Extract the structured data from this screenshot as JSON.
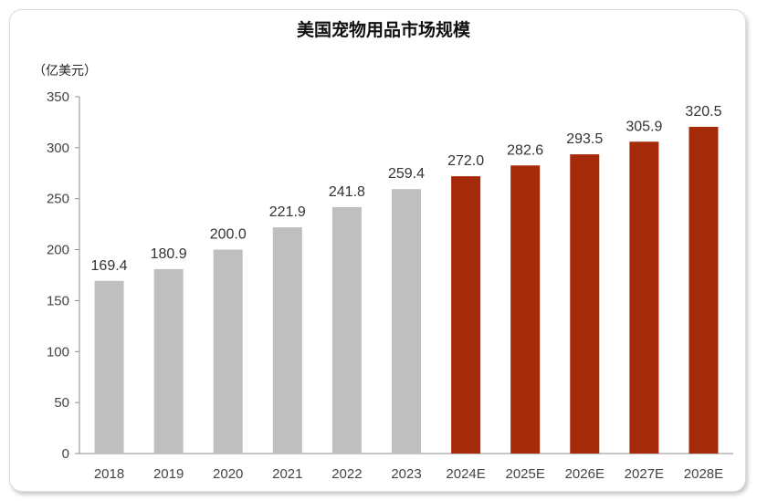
{
  "chart_data": {
    "type": "bar",
    "title": "美国宠物用品市场规模",
    "unit_label": "（亿美元）",
    "categories": [
      "2018",
      "2019",
      "2020",
      "2021",
      "2022",
      "2023",
      "2024E",
      "2025E",
      "2026E",
      "2027E",
      "2028E"
    ],
    "values": [
      169.4,
      180.9,
      200.0,
      221.9,
      241.8,
      259.4,
      272.0,
      282.6,
      293.5,
      305.9,
      320.5
    ],
    "data_labels": [
      "169.4",
      "180.9",
      "200.0",
      "221.9",
      "241.8",
      "259.4",
      "272.0",
      "282.6",
      "293.5",
      "305.9",
      "320.5"
    ],
    "bar_colors": [
      "#bfbfbf",
      "#bfbfbf",
      "#bfbfbf",
      "#bfbfbf",
      "#bfbfbf",
      "#bfbfbf",
      "#a52a0a",
      "#a52a0a",
      "#a52a0a",
      "#a52a0a",
      "#a52a0a"
    ],
    "ylim": [
      0,
      350
    ],
    "yticks": [
      "0",
      "50",
      "100",
      "150",
      "200",
      "250",
      "300",
      "350"
    ],
    "grid": false,
    "xlabel": "",
    "ylabel": ""
  }
}
